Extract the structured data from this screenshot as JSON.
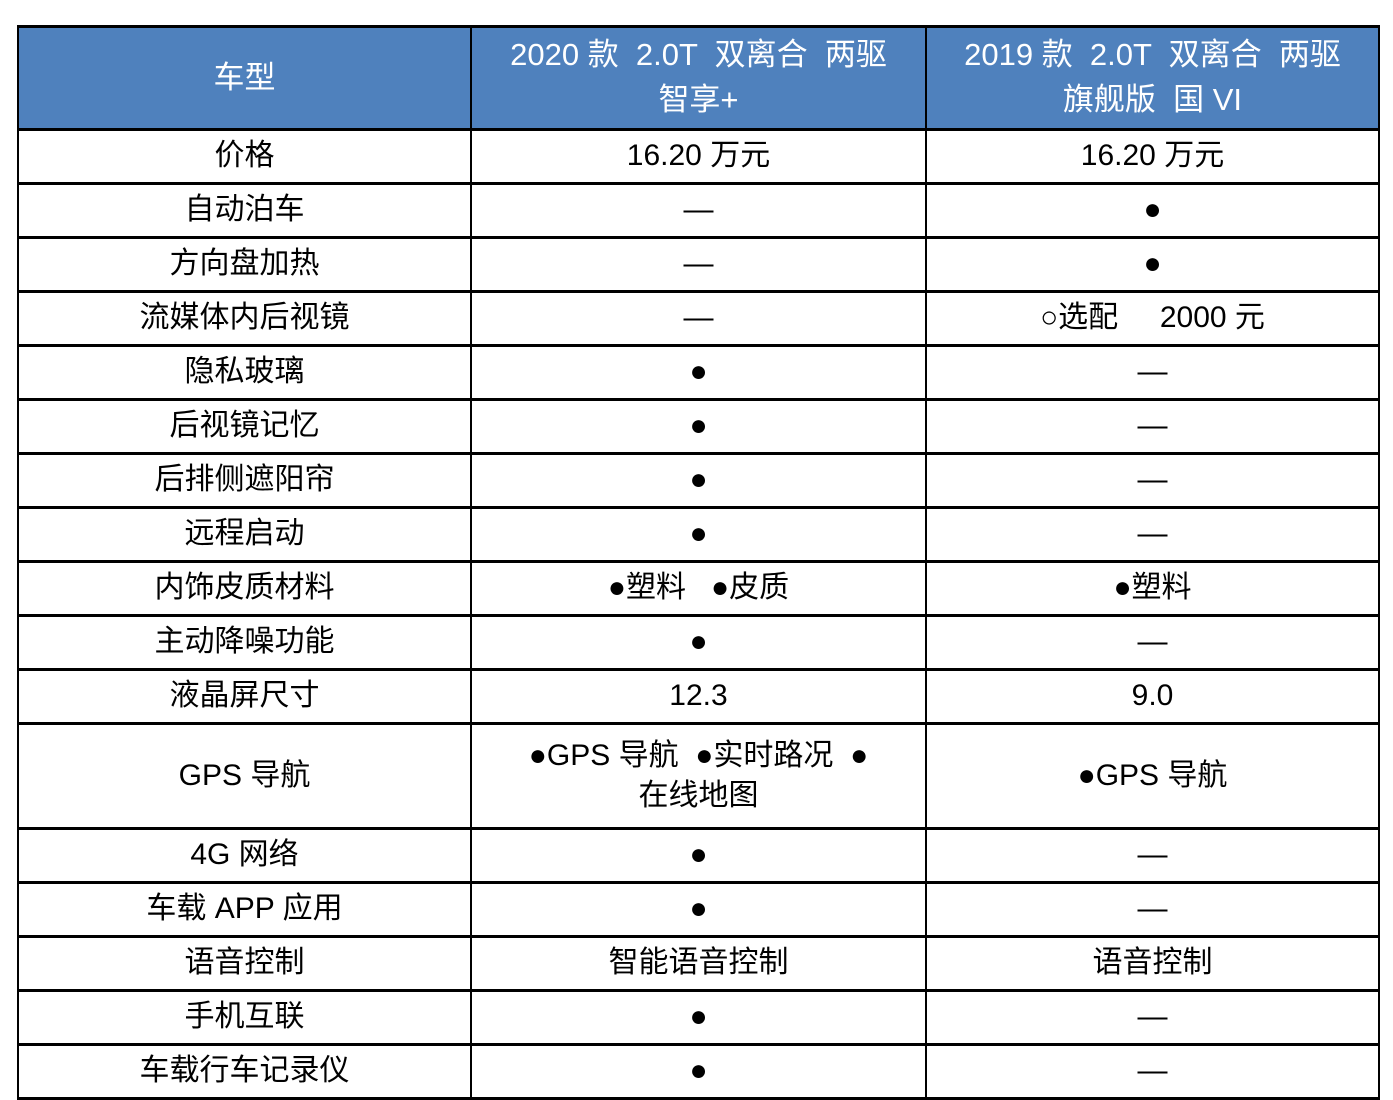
{
  "colors": {
    "page_bg": "#FFFFFF",
    "header_bg": "#4F81BD",
    "header_text": "#FFFFFF",
    "border": "#000000",
    "body_text": "#000000"
  },
  "legend_glyphs": {
    "included_dot": "●",
    "optional_circle": "○",
    "not_available_dash": "—"
  },
  "table": {
    "header": {
      "model_label": "车型",
      "col2020": [
        "2020 款  2.0T  双离合  两驱",
        "智享+"
      ],
      "col2019": [
        "2019 款  2.0T  双离合  两驱",
        "旗舰版  国 VI"
      ]
    },
    "rows": [
      {
        "feature": "价格",
        "v2020": [
          "16.20 万元"
        ],
        "v2019": [
          "16.20 万元"
        ]
      },
      {
        "feature": "自动泊车",
        "v2020": [
          "—"
        ],
        "v2019": [
          "●"
        ]
      },
      {
        "feature": "方向盘加热",
        "v2020": [
          "—"
        ],
        "v2019": [
          "●"
        ]
      },
      {
        "feature": "流媒体内后视镜",
        "v2020": [
          "—"
        ],
        "v2019": [
          "○选配     2000 元"
        ]
      },
      {
        "feature": "隐私玻璃",
        "v2020": [
          "●"
        ],
        "v2019": [
          "—"
        ]
      },
      {
        "feature": "后视镜记忆",
        "v2020": [
          "●"
        ],
        "v2019": [
          "—"
        ]
      },
      {
        "feature": "后排侧遮阳帘",
        "v2020": [
          "●"
        ],
        "v2019": [
          "—"
        ]
      },
      {
        "feature": "远程启动",
        "v2020": [
          "●"
        ],
        "v2019": [
          "—"
        ]
      },
      {
        "feature": "内饰皮质材料",
        "v2020": [
          "●塑料   ●皮质"
        ],
        "v2019": [
          "●塑料"
        ]
      },
      {
        "feature": "主动降噪功能",
        "v2020": [
          "●"
        ],
        "v2019": [
          "—"
        ]
      },
      {
        "feature": "液晶屏尺寸",
        "v2020": [
          "12.3"
        ],
        "v2019": [
          "9.0"
        ]
      },
      {
        "feature": "GPS 导航",
        "v2020": [
          "●GPS 导航  ●实时路况  ●",
          "在线地图"
        ],
        "v2019": [
          "●GPS 导航"
        ],
        "tall": true
      },
      {
        "feature": "4G 网络",
        "v2020": [
          "●"
        ],
        "v2019": [
          "—"
        ]
      },
      {
        "feature": "车载 APP 应用",
        "v2020": [
          "●"
        ],
        "v2019": [
          "—"
        ]
      },
      {
        "feature": "语音控制",
        "v2020": [
          "智能语音控制"
        ],
        "v2019": [
          "语音控制"
        ]
      },
      {
        "feature": "手机互联",
        "v2020": [
          "●"
        ],
        "v2019": [
          "—"
        ]
      },
      {
        "feature": "车载行车记录仪",
        "v2020": [
          "●"
        ],
        "v2019": [
          "—"
        ]
      }
    ]
  }
}
